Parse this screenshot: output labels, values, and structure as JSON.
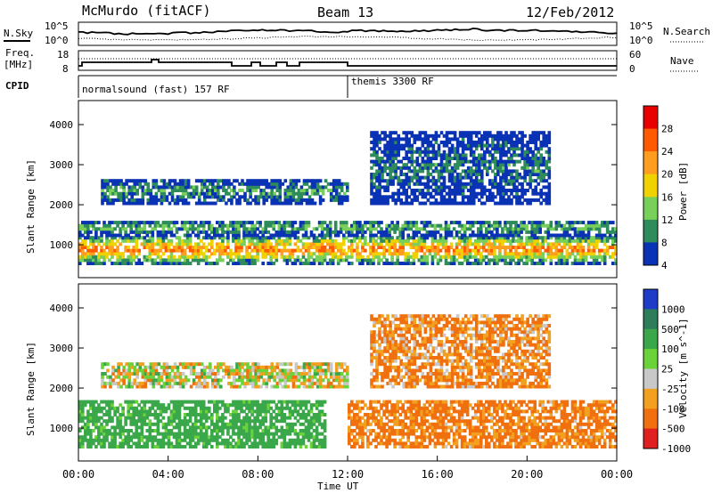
{
  "header": {
    "station": "McMurdo (fitACF)",
    "beam": "Beam 13",
    "date": "12/Feb/2012"
  },
  "summary": {
    "nsky_label": "N.Sky",
    "nsearch_label": "N.Search",
    "freq_label": "Freq.",
    "freq_unit": "[MHz]",
    "nave_label": "Nave",
    "cpid_label": "CPID",
    "left_ticks_top": [
      "10^5",
      "10^0"
    ],
    "right_ticks_top": [
      "10^5",
      "10^0"
    ],
    "left_ticks_freq": [
      "18",
      "8"
    ],
    "right_ticks_nave": [
      "60",
      "0"
    ],
    "cpid_segments": [
      {
        "label": "normalsound (fast) 157 RF",
        "start_h": 0,
        "end_h": 12
      },
      {
        "label": "themis 3300 RF",
        "start_h": 12,
        "end_h": 24
      }
    ]
  },
  "chart_data": [
    {
      "type": "heatmap",
      "parameter": "Power",
      "ylabel": "Slant Range [km]",
      "ylim": [
        180,
        4600
      ],
      "yticks": [
        1000,
        2000,
        3000,
        4000
      ],
      "xlim": [
        0,
        24
      ],
      "colorbar_label": "Power [dB]",
      "colorbar_ticks": [
        "28",
        "24",
        "20",
        "16",
        "12",
        "8",
        "4"
      ],
      "colorbar_colors": [
        "#e80000",
        "#ff5a00",
        "#ff9e1e",
        "#f0d200",
        "#78d05a",
        "#2e8c5a",
        "#0a32b4"
      ],
      "bands": [
        {
          "range_lo": 500,
          "range_hi": 1200,
          "t_start": 0,
          "t_end": 24,
          "level": 22
        },
        {
          "range_lo": 1200,
          "range_hi": 1600,
          "t_start": 0,
          "t_end": 24,
          "level": 12
        },
        {
          "range_lo": 2000,
          "range_hi": 2600,
          "t_start": 1,
          "t_end": 12,
          "level": 10
        },
        {
          "range_lo": 2000,
          "range_hi": 3800,
          "t_start": 13,
          "t_end": 21,
          "level": 8
        }
      ]
    },
    {
      "type": "heatmap",
      "parameter": "Velocity",
      "ylabel": "Slant Range [km]",
      "ylim": [
        180,
        4600
      ],
      "yticks": [
        1000,
        2000,
        3000,
        4000
      ],
      "xlim": [
        0,
        24
      ],
      "xticks": [
        "00:00",
        "04:00",
        "08:00",
        "12:00",
        "16:00",
        "20:00",
        "00:00"
      ],
      "xlabel": "Time UT",
      "colorbar_label": "Velocity [m s^-1]",
      "colorbar_ticks": [
        "1000",
        "500",
        "100",
        "25",
        "-25",
        "-100",
        "-500",
        "-1000"
      ],
      "colorbar_colors": [
        "#1e3cc8",
        "#2e7d5a",
        "#3aa84a",
        "#6cd23a",
        "#c8c8c8",
        "#f2a020",
        "#f07010",
        "#e02020"
      ],
      "bands": [
        {
          "range_lo": 500,
          "range_hi": 1700,
          "t_start": 0,
          "t_end": 11,
          "level": 200
        },
        {
          "range_lo": 500,
          "range_hi": 1700,
          "t_start": 12,
          "t_end": 24,
          "level": -150
        },
        {
          "range_lo": 2000,
          "range_hi": 2600,
          "t_start": 1,
          "t_end": 12,
          "level": 0
        },
        {
          "range_lo": 2000,
          "range_hi": 3800,
          "t_start": 13,
          "t_end": 21,
          "level": -120
        }
      ]
    }
  ]
}
